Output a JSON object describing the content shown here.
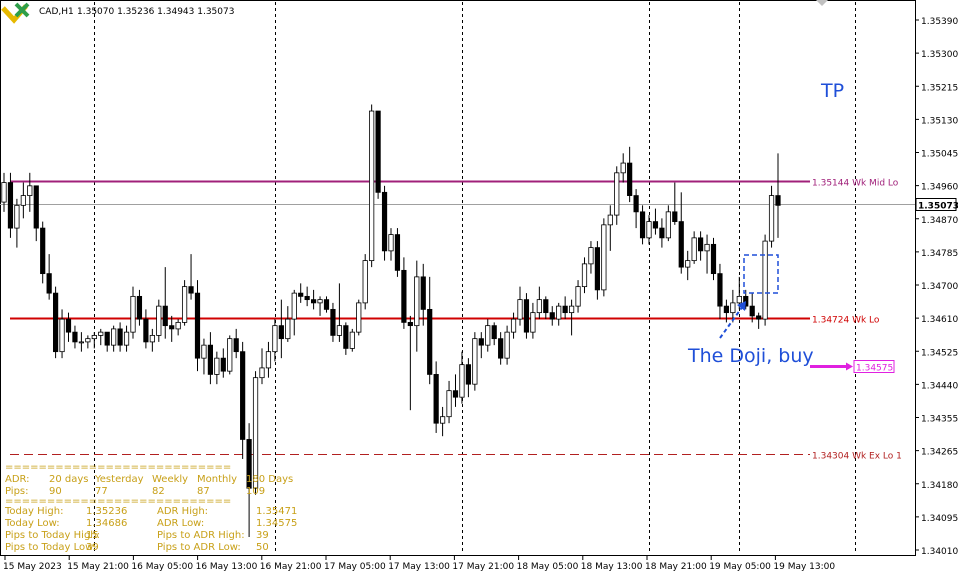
{
  "header": {
    "symbol_partial": "CAD,H1",
    "ohlc": "1.35070 1.35236 1.34943 1.35073"
  },
  "colors": {
    "candle_up_fill": "#ffffff",
    "candle_down_fill": "#000000",
    "wk_mid_lo": "#a0207a",
    "wk_lo": "#d00000",
    "wk_ex_lo": "#b22020",
    "adr_target": "#e020e0",
    "annotation": "#1f4fd8",
    "panel_text": "#c8a018",
    "grid_separator": "#000000",
    "current_price": "#a0a0a0"
  },
  "chart_data": {
    "type": "candlestick",
    "timeframe": "H1",
    "ylim": [
      1.3401,
      1.3564
    ],
    "grid": false,
    "y_ticks": [
      "1.35390",
      "1.35300",
      "1.35215",
      "1.35130",
      "1.35045",
      "1.34960",
      "1.34870",
      "1.34785",
      "1.34700",
      "1.34610",
      "1.34525",
      "1.34440",
      "1.34355",
      "1.34265",
      "1.34180",
      "1.34095",
      "1.34010"
    ],
    "x_ticks": [
      "15 May 2023",
      "15 May 21:00",
      "16 May 05:00",
      "16 May 13:00",
      "16 May 21:00",
      "17 May 05:00",
      "17 May 13:00",
      "17 May 21:00",
      "18 May 05:00",
      "18 May 13:00",
      "18 May 21:00",
      "19 May 05:00",
      "19 May 13:00"
    ],
    "session_separators": [
      "15 May 21:00",
      "16 May 21:00",
      "17 May 21:00",
      "18 May 21:00",
      "19 May 05:00",
      "19 May 21:00"
    ],
    "current_price": "1.35073",
    "levels": [
      {
        "price": "1.35144",
        "label": "1.35144  Wk Mid Lo",
        "style": "solid",
        "color_key": "wk_mid_lo"
      },
      {
        "price": "1.34724",
        "label": "1.34724  Wk Lo",
        "style": "solid",
        "color_key": "wk_lo"
      },
      {
        "price": "1.34304",
        "label": "1.34304  Wk Ex Lo 1",
        "style": "dashed",
        "color_key": "wk_ex_lo"
      }
    ],
    "adr_marker": {
      "price": "1.34575"
    },
    "candles": [
      [
        1.3508,
        1.3517,
        1.3505,
        1.3514
      ],
      [
        1.3514,
        1.3517,
        1.3497,
        1.35
      ],
      [
        1.35,
        1.3509,
        1.3494,
        1.3507
      ],
      [
        1.3507,
        1.3514,
        1.3503,
        1.351
      ],
      [
        1.351,
        1.3517,
        1.3505,
        1.3513
      ],
      [
        1.3513,
        1.3513,
        1.3496,
        1.35
      ],
      [
        1.35,
        1.3502,
        1.3483,
        1.3486
      ],
      [
        1.3486,
        1.3492,
        1.3478,
        1.348
      ],
      [
        1.348,
        1.3482,
        1.346,
        1.3462
      ],
      [
        1.3462,
        1.3475,
        1.346,
        1.3472
      ],
      [
        1.3472,
        1.3474,
        1.3465,
        1.3468
      ],
      [
        1.3468,
        1.347,
        1.3463,
        1.3465
      ],
      [
        1.3465,
        1.3468,
        1.3462,
        1.3465
      ],
      [
        1.3465,
        1.3467,
        1.3463,
        1.3466
      ],
      [
        1.3466,
        1.3468,
        1.3463,
        1.3467
      ],
      [
        1.3467,
        1.3469,
        1.3464,
        1.3468
      ],
      [
        1.3468,
        1.3468,
        1.3462,
        1.3464
      ],
      [
        1.3464,
        1.347,
        1.3462,
        1.3469
      ],
      [
        1.3469,
        1.3471,
        1.3462,
        1.3464
      ],
      [
        1.3464,
        1.347,
        1.3462,
        1.3468
      ],
      [
        1.3468,
        1.3482,
        1.3466,
        1.3479
      ],
      [
        1.3479,
        1.3481,
        1.347,
        1.3472
      ],
      [
        1.3472,
        1.3475,
        1.3463,
        1.3465
      ],
      [
        1.3465,
        1.3469,
        1.3462,
        1.3467
      ],
      [
        1.3467,
        1.3478,
        1.3465,
        1.3476
      ],
      [
        1.3476,
        1.3488,
        1.3466,
        1.347
      ],
      [
        1.347,
        1.3473,
        1.3465,
        1.3469
      ],
      [
        1.3469,
        1.3472,
        1.3467,
        1.3471
      ],
      [
        1.3471,
        1.3484,
        1.347,
        1.3482
      ],
      [
        1.3482,
        1.3492,
        1.3478,
        1.348
      ],
      [
        1.348,
        1.3484,
        1.3456,
        1.346
      ],
      [
        1.346,
        1.3466,
        1.3455,
        1.3464
      ],
      [
        1.3464,
        1.3468,
        1.3452,
        1.3455
      ],
      [
        1.3455,
        1.3462,
        1.3452,
        1.346
      ],
      [
        1.346,
        1.3463,
        1.3454,
        1.3456
      ],
      [
        1.3456,
        1.3467,
        1.3455,
        1.3466
      ],
      [
        1.3466,
        1.3469,
        1.346,
        1.3462
      ],
      [
        1.3462,
        1.3465,
        1.3429,
        1.3435
      ],
      [
        1.3435,
        1.344,
        1.3405,
        1.342
      ],
      [
        1.342,
        1.3456,
        1.3418,
        1.3454
      ],
      [
        1.3454,
        1.3463,
        1.3452,
        1.3457
      ],
      [
        1.3457,
        1.3465,
        1.3454,
        1.3462
      ],
      [
        1.3462,
        1.3472,
        1.3459,
        1.347
      ],
      [
        1.347,
        1.3478,
        1.346,
        1.3466
      ],
      [
        1.3466,
        1.3476,
        1.3465,
        1.3472
      ],
      [
        1.3472,
        1.3481,
        1.3467,
        1.348
      ],
      [
        1.348,
        1.3483,
        1.3477,
        1.3479
      ],
      [
        1.3479,
        1.3482,
        1.3476,
        1.3478
      ],
      [
        1.3478,
        1.3481,
        1.3475,
        1.3477
      ],
      [
        1.3477,
        1.3479,
        1.3473,
        1.3478
      ],
      [
        1.3478,
        1.3479,
        1.3474,
        1.3475
      ],
      [
        1.3475,
        1.3477,
        1.3465,
        1.3467
      ],
      [
        1.3467,
        1.3483,
        1.3465,
        1.347
      ],
      [
        1.347,
        1.3471,
        1.3461,
        1.3463
      ],
      [
        1.3463,
        1.3469,
        1.3462,
        1.3468
      ],
      [
        1.3468,
        1.3478,
        1.3467,
        1.3477
      ],
      [
        1.3477,
        1.3492,
        1.3475,
        1.349
      ],
      [
        1.349,
        1.3538,
        1.3488,
        1.3536
      ],
      [
        1.3536,
        1.3536,
        1.3509,
        1.3511
      ],
      [
        1.3511,
        1.3513,
        1.349,
        1.3493
      ],
      [
        1.3493,
        1.35,
        1.349,
        1.3498
      ],
      [
        1.3498,
        1.35,
        1.3485,
        1.3487
      ],
      [
        1.3487,
        1.3491,
        1.3469,
        1.3471
      ],
      [
        1.3471,
        1.3473,
        1.3444,
        1.347
      ],
      [
        1.347,
        1.349,
        1.3462,
        1.3485
      ],
      [
        1.3485,
        1.3489,
        1.347,
        1.3475
      ],
      [
        1.3475,
        1.3485,
        1.3452,
        1.3455
      ],
      [
        1.3455,
        1.3459,
        1.3437,
        1.344
      ],
      [
        1.344,
        1.3445,
        1.3436,
        1.3442
      ],
      [
        1.3442,
        1.3453,
        1.344,
        1.345
      ],
      [
        1.345,
        1.3455,
        1.3445,
        1.3448
      ],
      [
        1.3448,
        1.3462,
        1.3446,
        1.3458
      ],
      [
        1.3458,
        1.346,
        1.3448,
        1.3452
      ],
      [
        1.3452,
        1.3468,
        1.345,
        1.3466
      ],
      [
        1.3466,
        1.3468,
        1.346,
        1.3464
      ],
      [
        1.3464,
        1.3472,
        1.3462,
        1.347
      ],
      [
        1.347,
        1.3471,
        1.3464,
        1.3466
      ],
      [
        1.3466,
        1.3468,
        1.3458,
        1.346
      ],
      [
        1.346,
        1.347,
        1.3458,
        1.3468
      ],
      [
        1.3468,
        1.3474,
        1.3466,
        1.3472
      ],
      [
        1.3472,
        1.3482,
        1.347,
        1.3478
      ],
      [
        1.3478,
        1.348,
        1.3466,
        1.3468
      ],
      [
        1.3468,
        1.3477,
        1.3466,
        1.3474
      ],
      [
        1.3474,
        1.3482,
        1.3472,
        1.3478
      ],
      [
        1.3478,
        1.3479,
        1.3472,
        1.3474
      ],
      [
        1.3474,
        1.3476,
        1.347,
        1.3472
      ],
      [
        1.3472,
        1.3477,
        1.347,
        1.3476
      ],
      [
        1.3476,
        1.3479,
        1.3472,
        1.3474
      ],
      [
        1.3474,
        1.3478,
        1.3467,
        1.3476
      ],
      [
        1.3476,
        1.3484,
        1.3474,
        1.3482
      ],
      [
        1.3482,
        1.3491,
        1.348,
        1.3489
      ],
      [
        1.3489,
        1.3496,
        1.3486,
        1.3494
      ],
      [
        1.3494,
        1.3496,
        1.3478,
        1.3481
      ],
      [
        1.3481,
        1.3503,
        1.3479,
        1.3501
      ],
      [
        1.3501,
        1.3507,
        1.3493,
        1.3504
      ],
      [
        1.3504,
        1.3519,
        1.3501,
        1.3517
      ],
      [
        1.3517,
        1.3523,
        1.3514,
        1.352
      ],
      [
        1.352,
        1.3525,
        1.3508,
        1.351
      ],
      [
        1.351,
        1.3512,
        1.35,
        1.3505
      ],
      [
        1.3505,
        1.3507,
        1.3495,
        1.3497
      ],
      [
        1.3497,
        1.3504,
        1.3495,
        1.3502
      ],
      [
        1.3502,
        1.3506,
        1.3498,
        1.35
      ],
      [
        1.35,
        1.3503,
        1.3494,
        1.3497
      ],
      [
        1.3497,
        1.3507,
        1.3496,
        1.3505
      ],
      [
        1.3505,
        1.3514,
        1.3501,
        1.3502
      ],
      [
        1.3502,
        1.3511,
        1.3486,
        1.3488
      ],
      [
        1.3488,
        1.3493,
        1.3484,
        1.349
      ],
      [
        1.349,
        1.3499,
        1.3489,
        1.3497
      ],
      [
        1.3497,
        1.3499,
        1.349,
        1.3493
      ],
      [
        1.3493,
        1.3498,
        1.3486,
        1.3495
      ],
      [
        1.3495,
        1.3497,
        1.3484,
        1.3486
      ],
      [
        1.3486,
        1.3489,
        1.3472,
        1.3476
      ],
      [
        1.3476,
        1.3478,
        1.3471,
        1.3474
      ],
      [
        1.3474,
        1.3481,
        1.3471,
        1.3477
      ],
      [
        1.3477,
        1.3485,
        1.3475,
        1.3479
      ],
      [
        1.3479,
        1.3481,
        1.3475,
        1.3476
      ],
      [
        1.3476,
        1.348,
        1.3471,
        1.3473
      ],
      [
        1.3473,
        1.3474,
        1.3469,
        1.3472
      ],
      [
        1.3472,
        1.3498,
        1.347,
        1.3496
      ],
      [
        1.3496,
        1.3513,
        1.3494,
        1.351
      ],
      [
        1.351,
        1.3523,
        1.3497,
        1.3507
      ]
    ]
  },
  "annotations": {
    "tp": "TP",
    "doji": "The Doji, buy"
  },
  "adr_panel": {
    "separator": "===========================",
    "header": [
      "ADR:",
      "20 days",
      "Yesterday",
      "Weekly",
      "Monthly",
      "180 Days"
    ],
    "pips": [
      "Pips:",
      "90",
      "77",
      "82",
      "87",
      "109"
    ],
    "rows": [
      [
        "Today High:",
        "1.35236",
        "ADR High:",
        "1.35471"
      ],
      [
        "Today Low:",
        "1.34686",
        "ADR Low:",
        "1.34575"
      ],
      [
        "Pips to Today High:",
        "15",
        "Pips to ADR High:",
        "39"
      ],
      [
        "Pips to Today Low:",
        "39",
        "Pips to ADR Low:",
        "50"
      ]
    ]
  }
}
